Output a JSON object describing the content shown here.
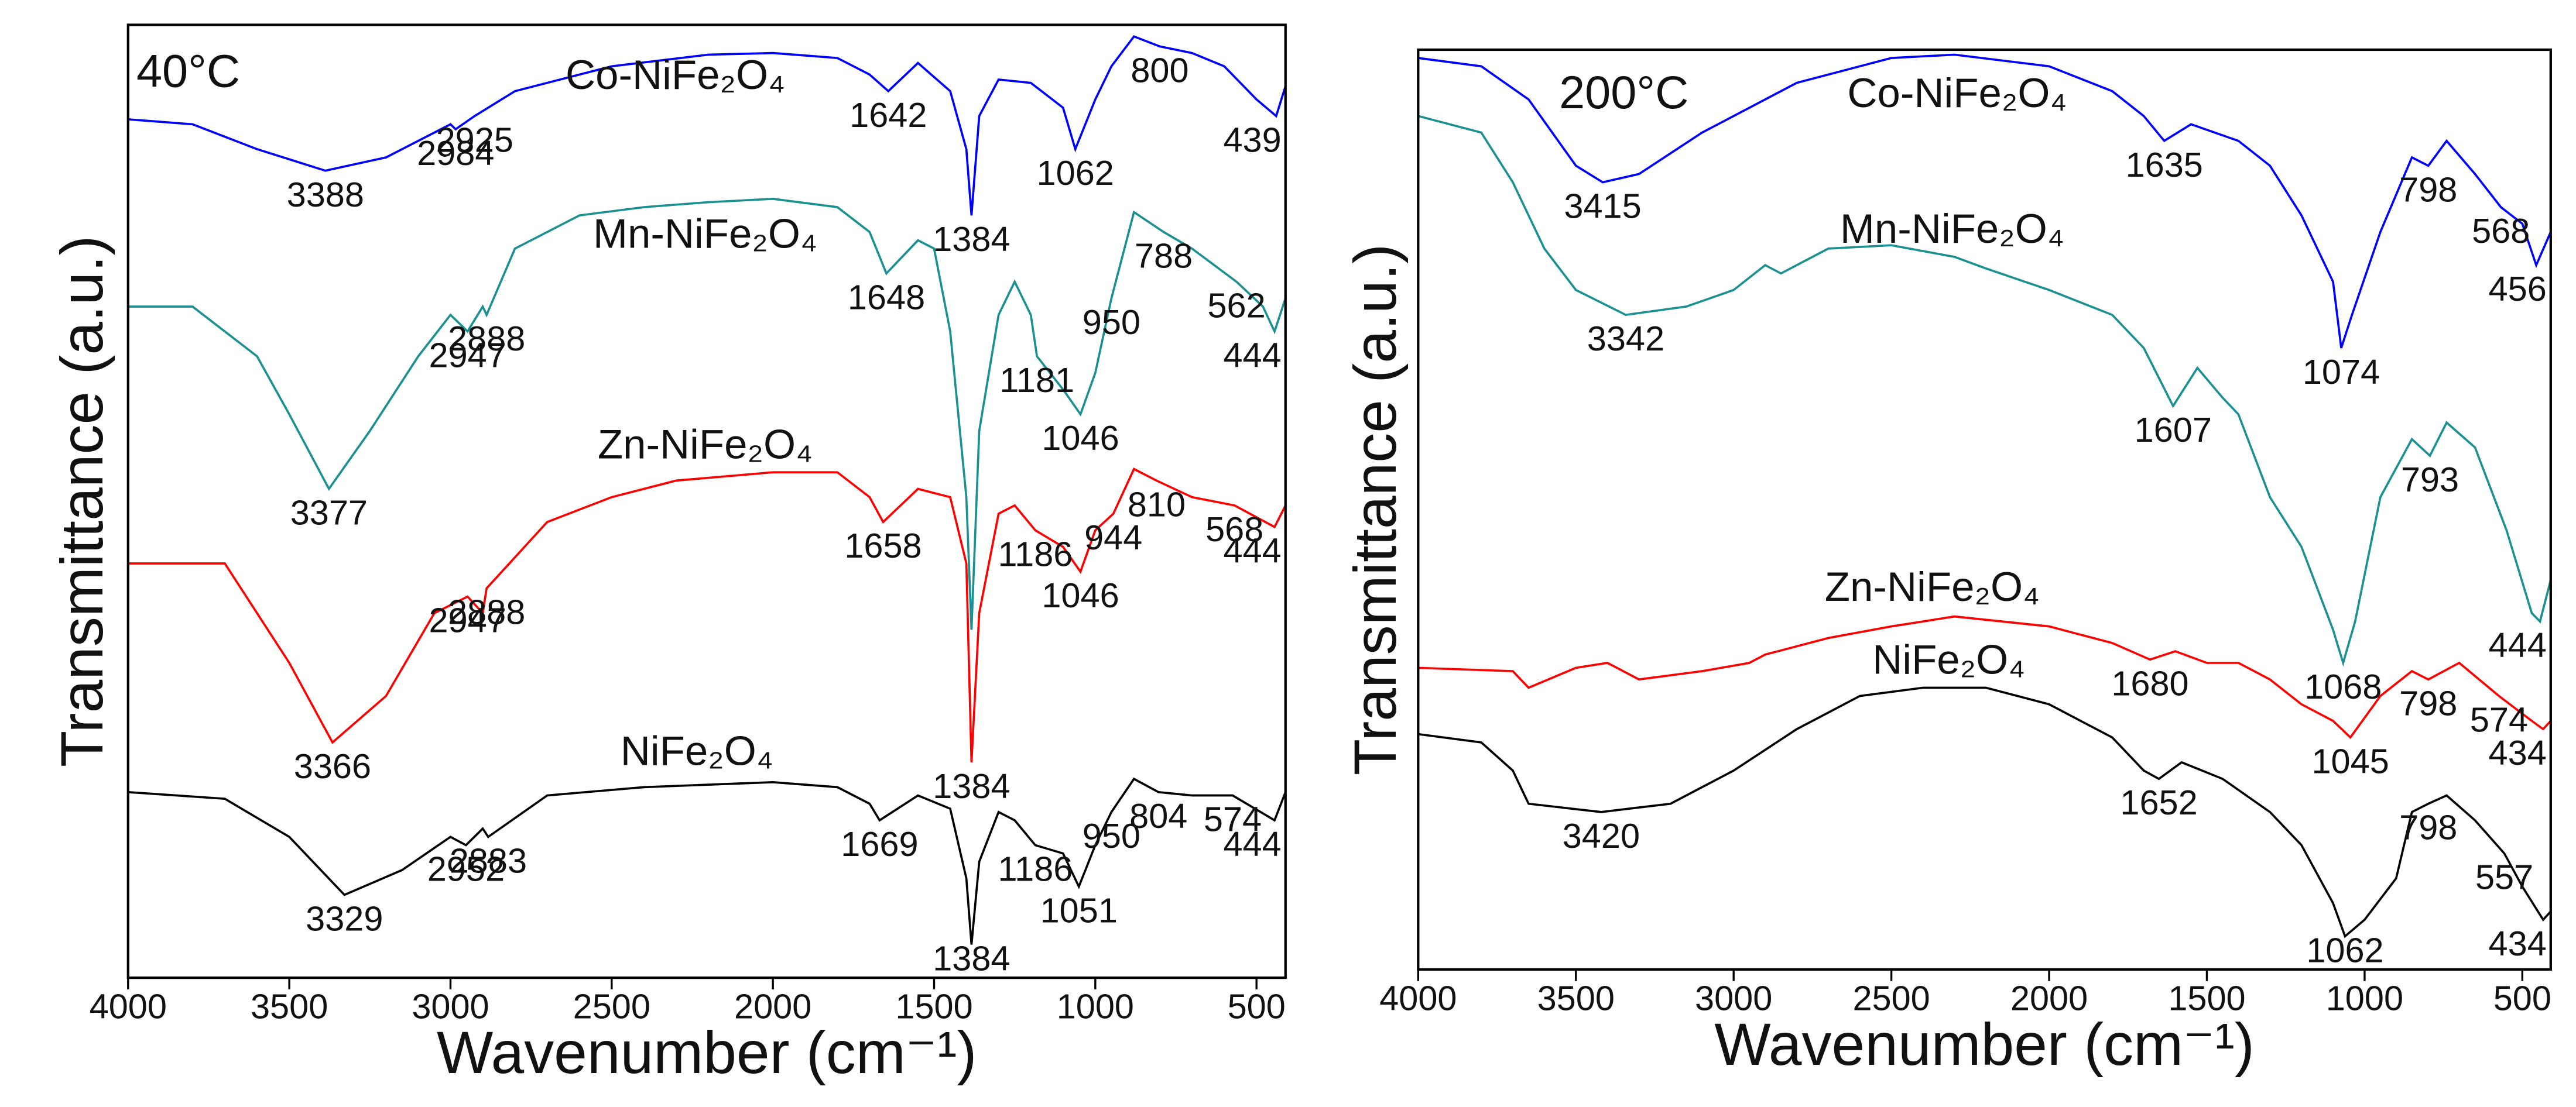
{
  "chart_data": [
    {
      "type": "line",
      "title": "40°C",
      "xlabel": "Wavenumber (cm⁻¹)",
      "ylabel": "Transmittance (a.u.)",
      "xlim": [
        4000,
        410
      ],
      "xticks": [
        4000,
        3500,
        3000,
        2500,
        2000,
        1500,
        1000,
        500
      ],
      "ylim": [
        0,
        575
      ],
      "series": [
        {
          "name": "Co-NiFe₂O₄",
          "color": "#0000ff",
          "x": [
            4000,
            3800,
            3600,
            3388,
            3200,
            3000,
            2984,
            2925,
            2800,
            2500,
            2200,
            2000,
            1800,
            1700,
            1642,
            1550,
            1450,
            1400,
            1384,
            1360,
            1300,
            1200,
            1100,
            1062,
            1000,
            950,
            880,
            800,
            700,
            600,
            500,
            439,
            410
          ],
          "values": [
            518,
            515,
            500,
            487,
            495,
            515,
            512,
            520,
            535,
            550,
            557,
            558,
            555,
            545,
            535,
            552,
            535,
            500,
            460,
            520,
            542,
            540,
            525,
            500,
            530,
            550,
            568,
            562,
            558,
            550,
            530,
            520,
            538
          ],
          "peaks": [
            3388,
            2984,
            2925,
            1642,
            1384,
            1062,
            800,
            439
          ]
        },
        {
          "name": "Mn-NiFe₂O₄",
          "color": "#1a9090",
          "x": [
            4000,
            3800,
            3600,
            3500,
            3377,
            3250,
            3100,
            3000,
            2947,
            2900,
            2888,
            2800,
            2600,
            2400,
            2200,
            2000,
            1800,
            1700,
            1648,
            1550,
            1500,
            1450,
            1400,
            1384,
            1360,
            1300,
            1250,
            1200,
            1181,
            1100,
            1046,
            1000,
            950,
            880,
            788,
            700,
            562,
            480,
            444,
            410
          ],
          "values": [
            405,
            405,
            375,
            340,
            295,
            330,
            375,
            400,
            390,
            405,
            400,
            440,
            460,
            465,
            468,
            470,
            465,
            450,
            425,
            445,
            440,
            390,
            290,
            210,
            330,
            400,
            420,
            400,
            375,
            355,
            340,
            365,
            410,
            462,
            450,
            440,
            420,
            405,
            390,
            410
          ],
          "peaks": [
            3377,
            2947,
            2888,
            1648,
            1181,
            1046,
            950,
            788,
            562,
            444
          ]
        },
        {
          "name": "Zn-NiFe₂O₄",
          "color": "#ff0000",
          "x": [
            4000,
            3700,
            3500,
            3366,
            3200,
            3050,
            2947,
            2900,
            2888,
            2700,
            2500,
            2300,
            2000,
            1800,
            1700,
            1658,
            1550,
            1450,
            1400,
            1384,
            1360,
            1300,
            1250,
            1186,
            1100,
            1046,
            1000,
            944,
            880,
            810,
            700,
            568,
            444,
            410
          ],
          "values": [
            250,
            250,
            190,
            142,
            170,
            220,
            230,
            220,
            235,
            275,
            290,
            300,
            305,
            305,
            290,
            275,
            295,
            290,
            250,
            130,
            220,
            280,
            285,
            270,
            260,
            245,
            270,
            280,
            307,
            300,
            290,
            285,
            272,
            285
          ],
          "peaks": [
            3366,
            2947,
            2888,
            1658,
            1384,
            1186,
            1046,
            944,
            810,
            568,
            444
          ]
        },
        {
          "name": "NiFe₂O₄",
          "color": "#000000",
          "x": [
            4000,
            3700,
            3500,
            3329,
            3150,
            3000,
            2952,
            2900,
            2883,
            2700,
            2400,
            2000,
            1800,
            1700,
            1669,
            1550,
            1450,
            1400,
            1384,
            1360,
            1300,
            1250,
            1186,
            1100,
            1051,
            1000,
            950,
            880,
            804,
            700,
            574,
            444,
            410
          ],
          "values": [
            112,
            108,
            85,
            50,
            65,
            85,
            80,
            90,
            85,
            110,
            115,
            118,
            115,
            105,
            95,
            110,
            102,
            60,
            20,
            70,
            100,
            95,
            80,
            75,
            55,
            80,
            100,
            120,
            112,
            110,
            110,
            95,
            112
          ],
          "peaks": [
            3329,
            2952,
            2883,
            1669,
            1384,
            1186,
            1051,
            950,
            804,
            574,
            444
          ]
        }
      ]
    },
    {
      "type": "line",
      "title": "200°C",
      "xlabel": "Wavenumber (cm⁻¹)",
      "ylabel": "Transmittance (a.u.)",
      "xlim": [
        4000,
        410
      ],
      "xticks": [
        4000,
        3500,
        3000,
        2500,
        2000,
        1500,
        1000,
        500
      ],
      "ylim": [
        0,
        555
      ],
      "series": [
        {
          "name": "Co-NiFe₂O₄",
          "color": "#0000ff",
          "x": [
            4000,
            3800,
            3650,
            3500,
            3415,
            3300,
            3100,
            2800,
            2500,
            2300,
            2000,
            1800,
            1700,
            1635,
            1550,
            1400,
            1300,
            1200,
            1100,
            1074,
            1040,
            950,
            850,
            798,
            740,
            650,
            568,
            500,
            456,
            410
          ],
          "values": [
            550,
            545,
            525,
            485,
            475,
            480,
            505,
            535,
            550,
            552,
            545,
            530,
            515,
            500,
            510,
            500,
            485,
            455,
            415,
            375,
            395,
            445,
            490,
            485,
            500,
            480,
            460,
            450,
            425,
            445
          ],
          "peaks": [
            3415,
            1635,
            1074,
            798,
            568,
            456
          ]
        },
        {
          "name": "Mn-NiFe₂O₄",
          "color": "#1a9090",
          "x": [
            4000,
            3800,
            3700,
            3600,
            3500,
            3342,
            3150,
            3000,
            2900,
            2850,
            2700,
            2500,
            2300,
            2200,
            2000,
            1800,
            1700,
            1607,
            1530,
            1450,
            1400,
            1300,
            1200,
            1100,
            1068,
            1030,
            950,
            850,
            793,
            740,
            650,
            550,
            470,
            444,
            410
          ],
          "values": [
            515,
            505,
            475,
            435,
            410,
            395,
            400,
            410,
            425,
            420,
            435,
            437,
            430,
            423,
            410,
            395,
            375,
            340,
            363,
            345,
            335,
            285,
            255,
            205,
            185,
            210,
            285,
            320,
            310,
            330,
            315,
            265,
            215,
            210,
            235
          ],
          "peaks": [
            3342,
            1607,
            1068,
            793,
            444
          ]
        },
        {
          "name": "Zn-NiFe₂O₄",
          "color": "#ff0000",
          "x": [
            4000,
            3700,
            3650,
            3500,
            3400,
            3300,
            3100,
            2950,
            2900,
            2700,
            2500,
            2300,
            2000,
            1800,
            1680,
            1600,
            1500,
            1400,
            1300,
            1200,
            1100,
            1045,
            950,
            850,
            798,
            700,
            574,
            470,
            434,
            410
          ],
          "values": [
            182,
            180,
            170,
            182,
            185,
            175,
            180,
            185,
            190,
            200,
            207,
            213,
            207,
            197,
            187,
            192,
            185,
            185,
            175,
            160,
            150,
            140,
            165,
            180,
            175,
            185,
            165,
            150,
            145,
            150
          ],
          "peaks": [
            1680,
            1045,
            798,
            574,
            434
          ]
        },
        {
          "name": "NiFe₂O₄",
          "color": "#000000",
          "x": [
            4000,
            3800,
            3700,
            3650,
            3420,
            3200,
            3000,
            2800,
            2600,
            2400,
            2200,
            2000,
            1800,
            1700,
            1652,
            1580,
            1450,
            1300,
            1200,
            1100,
            1062,
            1000,
            900,
            850,
            798,
            740,
            650,
            557,
            500,
            434,
            410
          ],
          "values": [
            142,
            137,
            120,
            100,
            95,
            100,
            120,
            145,
            165,
            170,
            170,
            160,
            140,
            120,
            115,
            125,
            115,
            95,
            75,
            40,
            20,
            30,
            55,
            95,
            100,
            105,
            90,
            70,
            50,
            30,
            35
          ],
          "peaks": [
            3420,
            1652,
            1062,
            798,
            557,
            434
          ]
        }
      ]
    }
  ]
}
